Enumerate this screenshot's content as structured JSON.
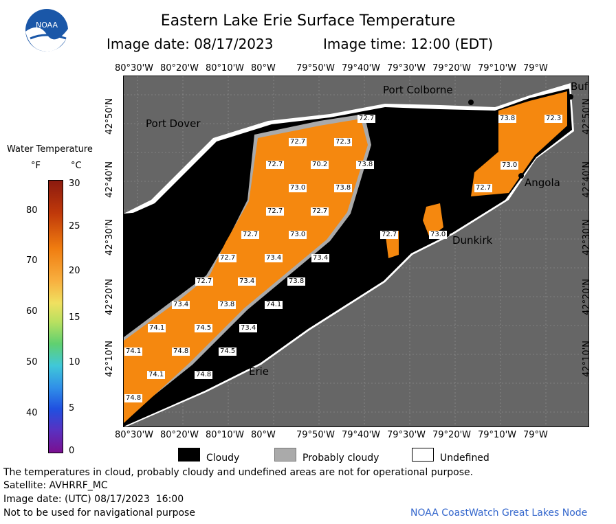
{
  "header": {
    "logo_text": "NOAA",
    "title": "Eastern Lake Erie Surface Temperature",
    "image_date": "Image date: 08/17/2023",
    "image_time": "Image time: 12:00 (EDT)"
  },
  "legend": {
    "title": "Water Temperature",
    "unit_f": "°F",
    "unit_c": "°C",
    "f_ticks": [
      "80",
      "70",
      "60",
      "50",
      "40"
    ],
    "c_ticks": [
      "30",
      "25",
      "20",
      "15",
      "10",
      "5",
      "0"
    ]
  },
  "axes": {
    "lon_labels": [
      "80°30'W",
      "80°20'W",
      "80°10'W",
      "80°W",
      "79°50'W",
      "79°40'W",
      "79°30'W",
      "79°20'W",
      "79°10'W",
      "79°W"
    ],
    "lat_labels": [
      "42°50'N",
      "42°40'N",
      "42°30'N",
      "42°20'N",
      "42°10'N"
    ]
  },
  "places": {
    "port_colborne": "Port Colborne",
    "port_dover": "Port Dover",
    "buffalo": "Buf",
    "angola": "Angola",
    "dunkirk": "Dunkirk",
    "erie": "Erie"
  },
  "temps": [
    "72.7",
    "73.8",
    "72.3",
    "72.7",
    "72.3",
    "72.7",
    "70.2",
    "73.8",
    "73.0",
    "73.0",
    "73.8",
    "72.7",
    "72.7",
    "72.7",
    "73.0",
    "72.7",
    "73.4",
    "72.7",
    "73.0",
    "73.4",
    "72.7",
    "73.4",
    "73.8",
    "72.7",
    "73.8",
    "74.1",
    "73.4",
    "74.1",
    "74.5",
    "73.4",
    "74.1",
    "74.8",
    "74.5",
    "74.1",
    "74.8",
    "74.8"
  ],
  "map_legend": {
    "cloudy": "Cloudy",
    "probably_cloudy": "Probably cloudy",
    "undefined": "Undefined"
  },
  "footer": {
    "disclaimer": "The temperatures in cloud, probably cloudy and undefined areas are not for operational purpose.",
    "satellite": "Satellite: AVHRRF_MC",
    "utc_date": "Image date: (UTC) 08/17/2023  16:00",
    "nav_warning": "Not to be used for navigational purpose",
    "credit": "NOAA CoastWatch Great Lakes Node"
  },
  "colors": {
    "land": "#666666",
    "cloud": "#000000",
    "probably_cloud": "#aaaaaa",
    "undefined": "#ffffff",
    "water": "#f5880f",
    "credit_blue": "#3366cc"
  }
}
